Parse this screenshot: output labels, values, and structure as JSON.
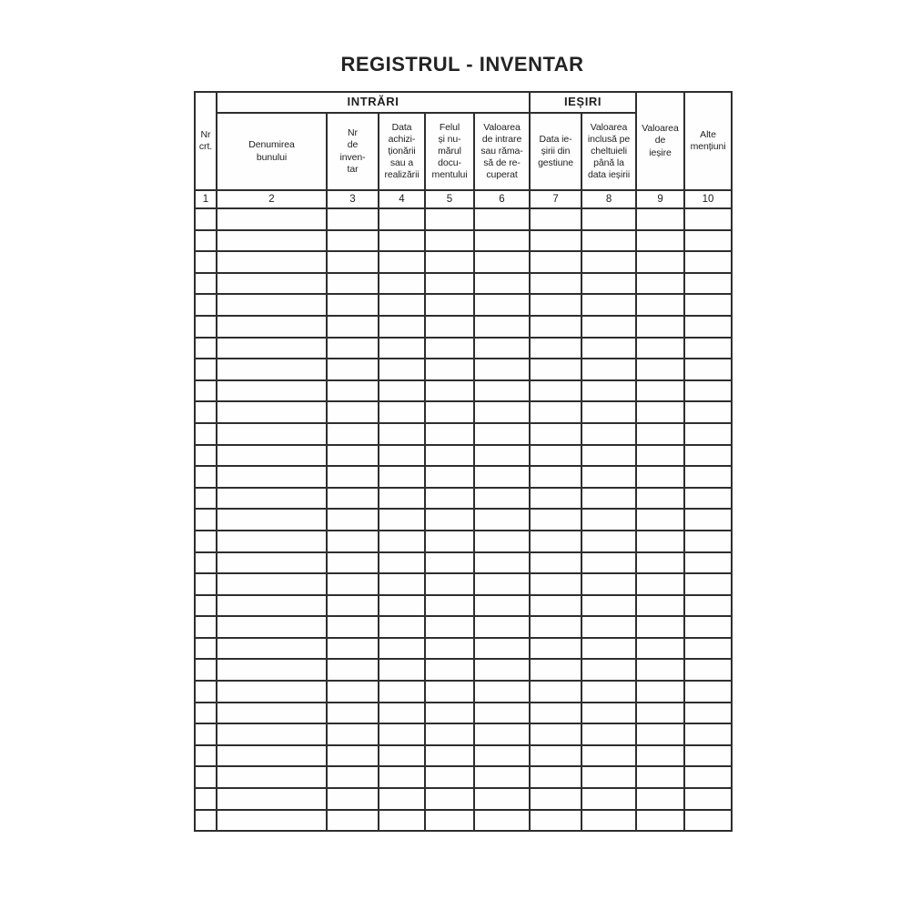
{
  "title": "REGISTRUL - INVENTAR",
  "table": {
    "group_headers": {
      "intrari": "INTRĂRI",
      "iesiri": "IEȘIRI"
    },
    "headers": {
      "nr_crt": "Nr\ncrt.",
      "denumirea_bunului": "Denumirea\nbunului",
      "nr_inventar": "Nr\nde\ninven-\ntar",
      "data_achizitionarii": "Data\nachizi-\nționării\nsau a\nrealizării",
      "felul_documentului": "Felul\nși nu-\nmărul\ndocu-\nmentului",
      "valoarea_intrare": "Valoarea\nde intrare\nsau răma-\nsă de re-\ncuperat",
      "data_iesirii": "Data ie-\nșirii din\ngestiune",
      "valoarea_cheltuieli": "Valoarea\ninclusă pe\ncheltuieli\npână la\ndata ieșirii",
      "valoarea_iesire": "Valoarea\nde\nieșire",
      "alte_mentiuni": "Alte\nmențiuni"
    },
    "column_numbers": [
      "1",
      "2",
      "3",
      "4",
      "5",
      "6",
      "7",
      "8",
      "9",
      "10"
    ],
    "body_row_count": 29,
    "column_count": 10,
    "body_cell_value": ""
  },
  "colors": {
    "background": "#ffffff",
    "line": "#2e2e2e",
    "text": "#1f1f1f"
  }
}
